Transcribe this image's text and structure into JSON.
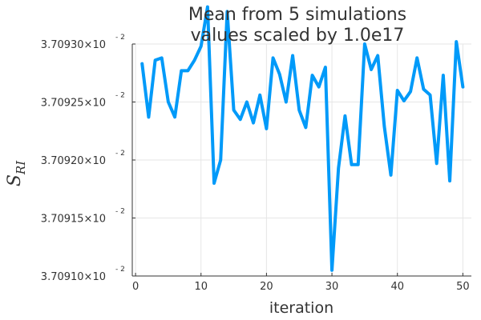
{
  "chart_data": {
    "type": "line",
    "title_line1": "Mean from 5 simulations",
    "title_line2": "values scaled by 1.0e17",
    "xlabel": "iteration",
    "ylabel_main": "S",
    "ylabel_sub": "RI",
    "xlim": [
      -0.5,
      51.3
    ],
    "ylim": [
      0.037091,
      0.037093
    ],
    "grid": true,
    "legend": "none",
    "line_color": "#009af9",
    "x_ticks": [
      {
        "value": 0,
        "label": "0"
      },
      {
        "value": 10,
        "label": "10"
      },
      {
        "value": 20,
        "label": "20"
      },
      {
        "value": 30,
        "label": "30"
      },
      {
        "value": 40,
        "label": "40"
      },
      {
        "value": 50,
        "label": "50"
      }
    ],
    "y_ticks": [
      {
        "value": 0.037091,
        "label": "3.70910×10",
        "exp": "- 2"
      },
      {
        "value": 0.0370915,
        "label": "3.70915×10",
        "exp": "- 2"
      },
      {
        "value": 0.037092,
        "label": "3.70920×10",
        "exp": "- 2"
      },
      {
        "value": 0.0370925,
        "label": "3.70925×10",
        "exp": "- 2"
      },
      {
        "value": 0.037093,
        "label": "3.70930×10",
        "exp": "- 2"
      }
    ],
    "series": [
      {
        "x": [
          1,
          2,
          3,
          4,
          5,
          6,
          7,
          8,
          9,
          10,
          11,
          12,
          13,
          14,
          15,
          16,
          17,
          18,
          19,
          20,
          21,
          22,
          23,
          24,
          25,
          26,
          27,
          28,
          29,
          30,
          31,
          32,
          33,
          34,
          35,
          36,
          37,
          38,
          39,
          40,
          41,
          42,
          43,
          44,
          45,
          46,
          47,
          48,
          49,
          50
        ],
        "values": [
          0.03709283,
          0.03709237,
          0.03709286,
          0.03709288,
          0.0370925,
          0.03709237,
          0.03709277,
          0.03709277,
          0.03709286,
          0.03709298,
          0.03709332,
          0.0370918,
          0.037092,
          0.03709328,
          0.03709243,
          0.03709235,
          0.0370925,
          0.03709232,
          0.03709256,
          0.03709227,
          0.03709288,
          0.03709274,
          0.0370925,
          0.0370929,
          0.03709243,
          0.03709228,
          0.03709273,
          0.03709263,
          0.0370928,
          0.03709105,
          0.03709193,
          0.03709238,
          0.03709196,
          0.03709196,
          0.037093,
          0.03709278,
          0.0370929,
          0.03709229,
          0.03709187,
          0.0370926,
          0.03709251,
          0.03709259,
          0.03709288,
          0.03709261,
          0.03709256,
          0.03709197,
          0.03709273,
          0.03709182,
          0.03709302,
          0.03709263
        ]
      }
    ]
  }
}
